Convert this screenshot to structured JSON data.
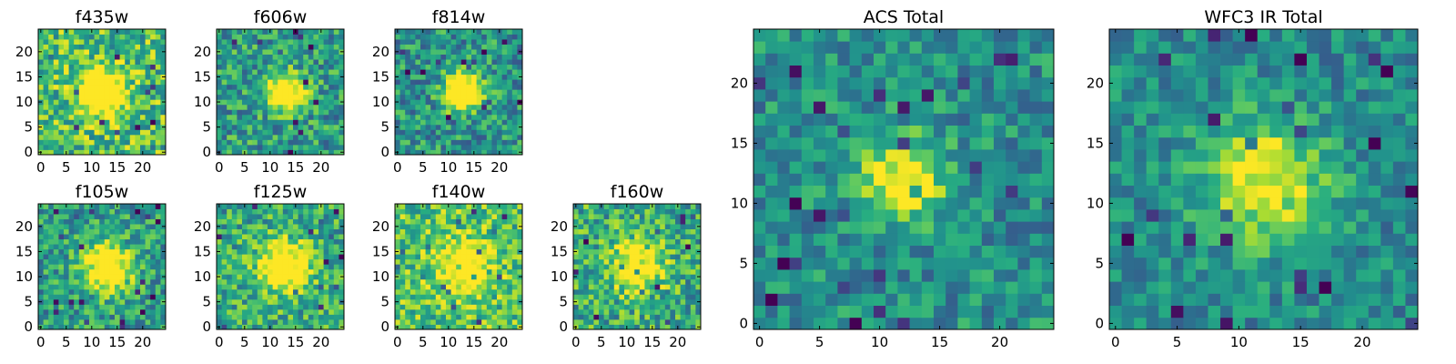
{
  "chart_data": [
    {
      "type": "heatmap",
      "title": "f435w",
      "size": 25,
      "xticks": [
        0,
        5,
        10,
        15,
        20
      ],
      "yticks": [
        0,
        5,
        10,
        15,
        20
      ],
      "xlim": [
        0,
        25
      ],
      "ylim": [
        0,
        25
      ],
      "colormap": "viridis",
      "center": [
        12,
        12
      ],
      "spread": 3.0,
      "peak": 0.85,
      "base": 0.7,
      "noise": 0.28
    },
    {
      "type": "heatmap",
      "title": "f606w",
      "size": 25,
      "xticks": [
        0,
        5,
        10,
        15,
        20
      ],
      "yticks": [
        0,
        5,
        10,
        15,
        20
      ],
      "xlim": [
        0,
        25
      ],
      "ylim": [
        0,
        25
      ],
      "colormap": "viridis",
      "center": [
        13,
        12
      ],
      "spread": 2.6,
      "peak": 0.85,
      "base": 0.55,
      "noise": 0.26
    },
    {
      "type": "heatmap",
      "title": "f814w",
      "size": 25,
      "xticks": [
        0,
        5,
        10,
        15,
        20
      ],
      "yticks": [
        0,
        5,
        10,
        15,
        20
      ],
      "xlim": [
        0,
        25
      ],
      "ylim": [
        0,
        25
      ],
      "colormap": "viridis",
      "center": [
        13,
        12
      ],
      "spread": 2.6,
      "peak": 0.85,
      "base": 0.52,
      "noise": 0.25
    },
    {
      "type": "heatmap",
      "title": "f105w",
      "size": 25,
      "xticks": [
        0,
        5,
        10,
        15,
        20
      ],
      "yticks": [
        0,
        5,
        10,
        15,
        20
      ],
      "xlim": [
        0,
        25
      ],
      "ylim": [
        0,
        25
      ],
      "colormap": "viridis",
      "center": [
        13,
        12
      ],
      "spread": 3.5,
      "peak": 0.75,
      "base": 0.55,
      "noise": 0.24
    },
    {
      "type": "heatmap",
      "title": "f125w",
      "size": 25,
      "xticks": [
        0,
        5,
        10,
        15,
        20
      ],
      "yticks": [
        0,
        5,
        10,
        15,
        20
      ],
      "xlim": [
        0,
        25
      ],
      "ylim": [
        0,
        25
      ],
      "colormap": "viridis",
      "center": [
        13,
        12
      ],
      "spread": 3.5,
      "peak": 0.7,
      "base": 0.62,
      "noise": 0.25
    },
    {
      "type": "heatmap",
      "title": "f140w",
      "size": 25,
      "xticks": [
        0,
        5,
        10,
        15,
        20
      ],
      "yticks": [
        0,
        5,
        10,
        15,
        20
      ],
      "xlim": [
        0,
        25
      ],
      "ylim": [
        0,
        25
      ],
      "colormap": "viridis",
      "center": [
        13,
        12
      ],
      "spread": 3.5,
      "peak": 0.55,
      "base": 0.72,
      "noise": 0.25
    },
    {
      "type": "heatmap",
      "title": "f160w",
      "size": 25,
      "xticks": [
        0,
        5,
        10,
        15,
        20
      ],
      "yticks": [
        0,
        5,
        10,
        15,
        20
      ],
      "xlim": [
        0,
        25
      ],
      "ylim": [
        0,
        25
      ],
      "colormap": "viridis",
      "center": [
        12,
        12
      ],
      "spread": 3.5,
      "peak": 0.6,
      "base": 0.62,
      "noise": 0.27
    },
    {
      "type": "heatmap",
      "title": "ACS Total",
      "size": 25,
      "xticks": [
        0,
        5,
        10,
        15,
        20
      ],
      "yticks": [
        0,
        5,
        10,
        15,
        20
      ],
      "xlim": [
        0,
        25
      ],
      "ylim": [
        0,
        25
      ],
      "colormap": "viridis",
      "center": [
        12,
        12
      ],
      "spread": 2.4,
      "peak": 0.6,
      "base": 0.5,
      "noise": 0.2
    },
    {
      "type": "heatmap",
      "title": "WFC3 IR Total",
      "size": 25,
      "xticks": [
        0,
        5,
        10,
        15,
        20
      ],
      "yticks": [
        0,
        5,
        10,
        15,
        20
      ],
      "xlim": [
        0,
        25
      ],
      "ylim": [
        0,
        25
      ],
      "colormap": "viridis",
      "center": [
        12,
        12
      ],
      "spread": 3.6,
      "peak": 0.55,
      "base": 0.48,
      "noise": 0.18
    }
  ]
}
